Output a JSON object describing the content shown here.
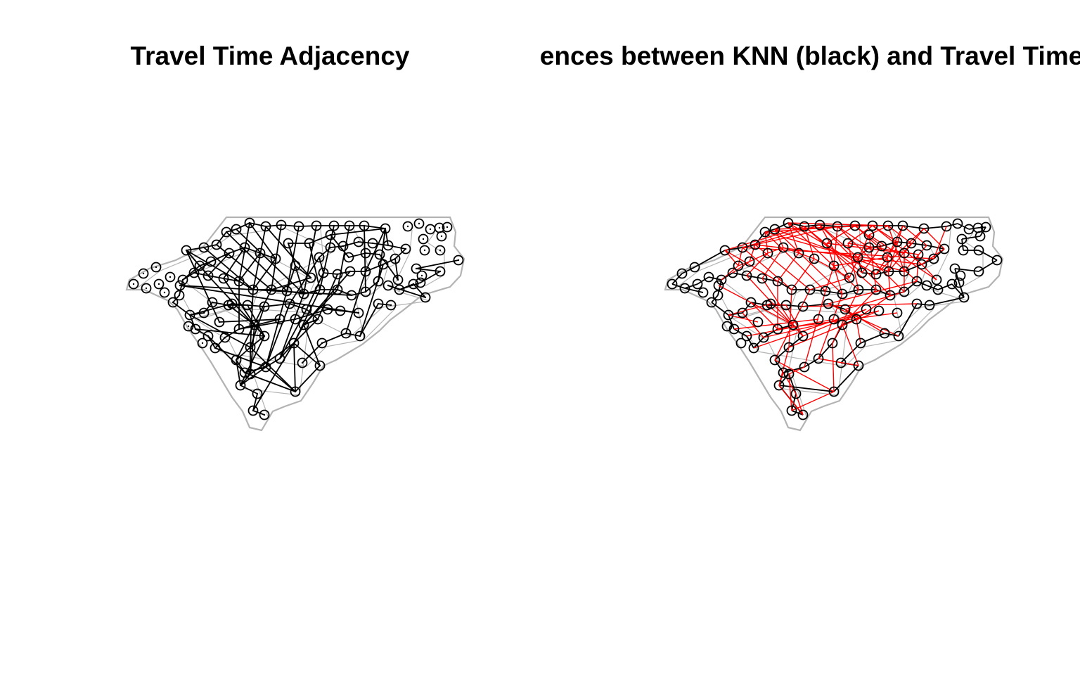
{
  "panels": [
    {
      "title": "Travel Time Adjacency",
      "region": "North Carolina counties",
      "outline_color": "#b3b3b3",
      "edge_colors": [
        "#000000"
      ],
      "node_style": "circle-with-center-dot"
    },
    {
      "title": "Differences between KNN (black) and Travel Time (red)",
      "region": "North Carolina counties",
      "outline_color": "#b3b3b3",
      "edge_colors": [
        "#000000",
        "#ff0000"
      ],
      "node_style": "circle"
    }
  ]
}
